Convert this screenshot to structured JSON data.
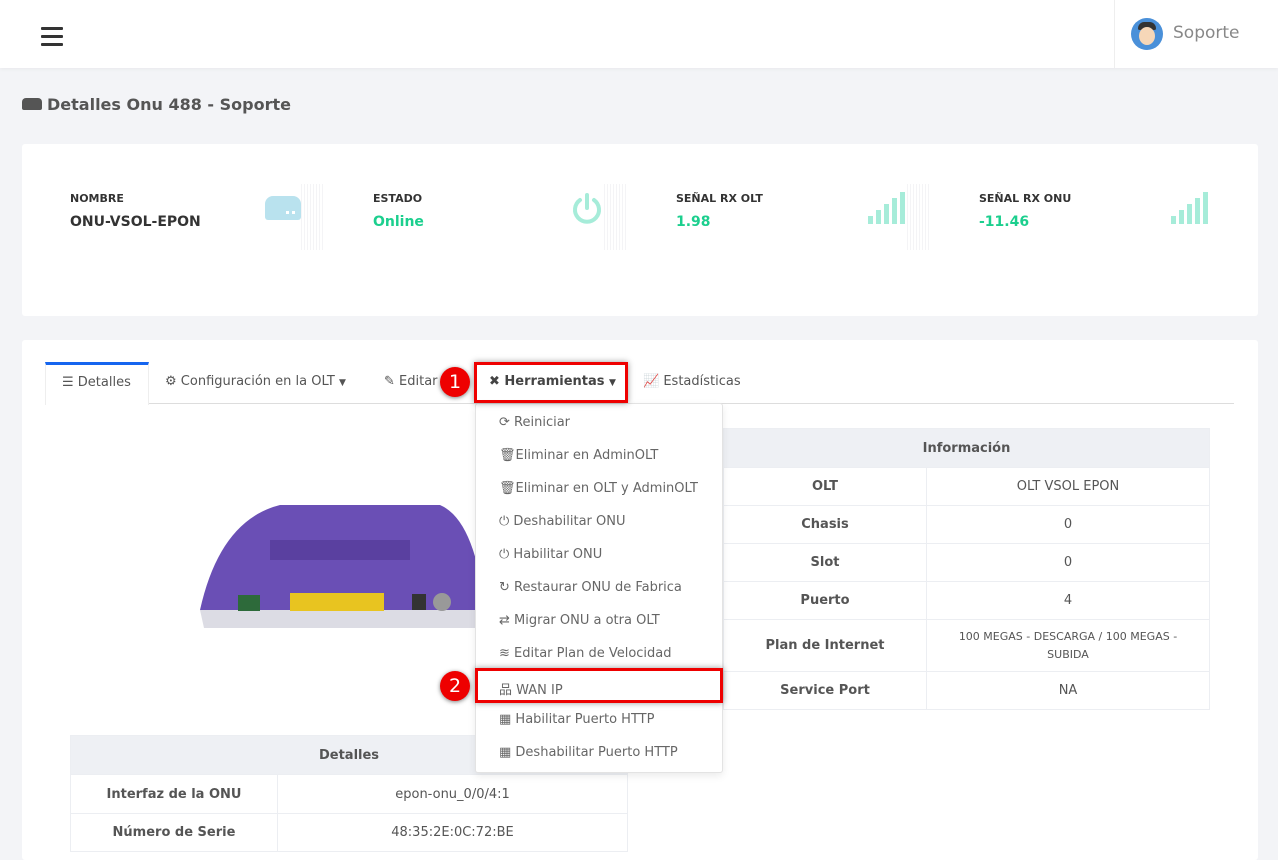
{
  "topbar": {
    "user_name": "Soporte"
  },
  "page_title": "Detalles Onu 488 - Soporte",
  "stats": [
    {
      "label": "NOMBRE",
      "value": "ONU-VSOL-EPON",
      "icon": "hdd-icon",
      "color": "#333333"
    },
    {
      "label": "ESTADO",
      "value": "Online",
      "icon": "power-icon",
      "color": "#1ccf8e"
    },
    {
      "label": "SEÑAL RX OLT",
      "value": "1.98",
      "icon": "signal-icon",
      "color": "#1ccf8e"
    },
    {
      "label": "SEÑAL RX ONU",
      "value": "-11.46",
      "icon": "signal-icon",
      "color": "#1ccf8e"
    }
  ],
  "tabs": [
    {
      "label": "Detalles",
      "active": true
    },
    {
      "label": "Configuración en la OLT"
    },
    {
      "label": "Editar"
    },
    {
      "label": "Herramientas"
    },
    {
      "label": "Estadísticas"
    }
  ],
  "dropdown": [
    "Reiniciar",
    "Eliminar en AdminOLT",
    "Eliminar en OLT y AdminOLT",
    "Deshabilitar ONU",
    "Habilitar ONU",
    "Restaurar ONU de Fabrica",
    "Migrar ONU a otra OLT",
    "Editar Plan de Velocidad",
    "WAN IP",
    "Habilitar Puerto HTTP",
    "Deshabilitar Puerto HTTP"
  ],
  "annotations": {
    "step1": "1",
    "step2": "2"
  },
  "info_table": {
    "title": "Información",
    "rows": [
      {
        "k": "OLT",
        "v": "OLT VSOL EPON"
      },
      {
        "k": "Chasis",
        "v": "0"
      },
      {
        "k": "Slot",
        "v": "0"
      },
      {
        "k": "Puerto",
        "v": "4"
      },
      {
        "k": "Plan de Internet",
        "v": "100 MEGAS - DESCARGA / 100 MEGAS - SUBIDA"
      },
      {
        "k": "Service Port",
        "v": "NA"
      }
    ]
  },
  "details_table": {
    "title": "Detalles",
    "rows": [
      {
        "k": "Interfaz de la ONU",
        "v": "epon-onu_0/0/4:1"
      },
      {
        "k": "Número de Serie",
        "v": "48:35:2E:0C:72:BE"
      }
    ]
  },
  "colors": {
    "accent": "#1565ef",
    "success": "#1ccf8e",
    "highlight": "#e00000"
  }
}
